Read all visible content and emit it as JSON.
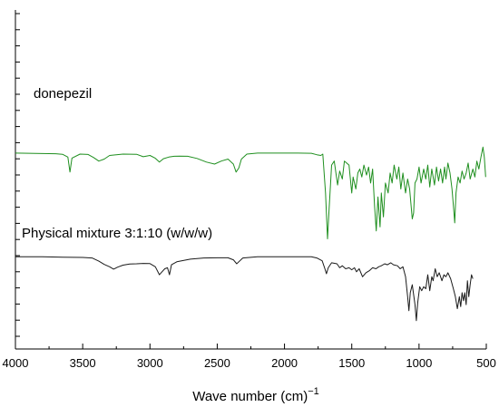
{
  "chart_data": {
    "type": "line",
    "title": "",
    "xlabel": "Wave number (cm)",
    "xlabel_superscript": "−1",
    "ylabel": "",
    "x_reversed": true,
    "xlim": [
      4000,
      500
    ],
    "xticks": [
      4000,
      3500,
      3000,
      2500,
      2000,
      1500,
      1000,
      500
    ],
    "legend": "none",
    "grid": false,
    "series": [
      {
        "name": "donepezil",
        "color": "#1f8f1f",
        "offset": 2.2,
        "points": [
          [
            4000,
            0.0
          ],
          [
            3850,
            0.02
          ],
          [
            3700,
            0.03
          ],
          [
            3650,
            0.06
          ],
          [
            3610,
            0.2
          ],
          [
            3595,
            0.95
          ],
          [
            3580,
            0.25
          ],
          [
            3520,
            0.05
          ],
          [
            3460,
            0.07
          ],
          [
            3420,
            0.22
          ],
          [
            3380,
            0.4
          ],
          [
            3340,
            0.3
          ],
          [
            3300,
            0.12
          ],
          [
            3200,
            0.05
          ],
          [
            3100,
            0.06
          ],
          [
            3050,
            0.18
          ],
          [
            3000,
            0.12
          ],
          [
            2960,
            0.26
          ],
          [
            2930,
            0.45
          ],
          [
            2900,
            0.28
          ],
          [
            2860,
            0.2
          ],
          [
            2820,
            0.16
          ],
          [
            2780,
            0.15
          ],
          [
            2720,
            0.16
          ],
          [
            2650,
            0.27
          ],
          [
            2580,
            0.45
          ],
          [
            2520,
            0.55
          ],
          [
            2470,
            0.4
          ],
          [
            2420,
            0.3
          ],
          [
            2380,
            0.55
          ],
          [
            2360,
            0.95
          ],
          [
            2340,
            0.75
          ],
          [
            2320,
            0.3
          ],
          [
            2280,
            0.05
          ],
          [
            2200,
            0.0
          ],
          [
            2100,
            0.0
          ],
          [
            2000,
            0.0
          ],
          [
            1900,
            0.0
          ],
          [
            1800,
            0.01
          ],
          [
            1760,
            0.08
          ],
          [
            1730,
            0.12
          ],
          [
            1715,
            0.05
          ],
          [
            1695,
            2.0
          ],
          [
            1680,
            4.3
          ],
          [
            1670,
            3.0
          ],
          [
            1650,
            0.6
          ],
          [
            1630,
            0.4
          ],
          [
            1605,
            1.6
          ],
          [
            1590,
            0.9
          ],
          [
            1570,
            1.3
          ],
          [
            1555,
            0.4
          ],
          [
            1520,
            0.6
          ],
          [
            1500,
            2.0
          ],
          [
            1490,
            1.2
          ],
          [
            1470,
            1.8
          ],
          [
            1455,
            1.0
          ],
          [
            1440,
            0.8
          ],
          [
            1425,
            1.2
          ],
          [
            1410,
            0.6
          ],
          [
            1390,
            1.1
          ],
          [
            1375,
            0.7
          ],
          [
            1360,
            1.5
          ],
          [
            1345,
            0.8
          ],
          [
            1330,
            2.7
          ],
          [
            1318,
            3.9
          ],
          [
            1305,
            2.2
          ],
          [
            1290,
            3.7
          ],
          [
            1280,
            2.0
          ],
          [
            1265,
            3.2
          ],
          [
            1250,
            1.5
          ],
          [
            1230,
            2.0
          ],
          [
            1215,
            1.0
          ],
          [
            1200,
            1.5
          ],
          [
            1185,
            0.6
          ],
          [
            1165,
            1.3
          ],
          [
            1150,
            0.7
          ],
          [
            1135,
            1.8
          ],
          [
            1120,
            1.0
          ],
          [
            1100,
            2.0
          ],
          [
            1085,
            1.3
          ],
          [
            1070,
            1.8
          ],
          [
            1050,
            3.3
          ],
          [
            1040,
            3.0
          ],
          [
            1030,
            1.5
          ],
          [
            1015,
            1.3
          ],
          [
            1000,
            0.7
          ],
          [
            985,
            1.5
          ],
          [
            965,
            0.8
          ],
          [
            950,
            1.3
          ],
          [
            935,
            0.6
          ],
          [
            920,
            1.7
          ],
          [
            905,
            0.8
          ],
          [
            885,
            1.6
          ],
          [
            870,
            0.7
          ],
          [
            855,
            1.4
          ],
          [
            840,
            0.8
          ],
          [
            825,
            1.5
          ],
          [
            810,
            0.7
          ],
          [
            800,
            1.3
          ],
          [
            785,
            0.5
          ],
          [
            770,
            1.0
          ],
          [
            755,
            1.8
          ],
          [
            740,
            3.0
          ],
          [
            735,
            3.5
          ],
          [
            725,
            2.0
          ],
          [
            710,
            1.2
          ],
          [
            695,
            1.5
          ],
          [
            680,
            0.9
          ],
          [
            665,
            1.3
          ],
          [
            650,
            1.0
          ],
          [
            635,
            0.5
          ],
          [
            620,
            1.3
          ],
          [
            600,
            0.8
          ],
          [
            585,
            1.2
          ],
          [
            570,
            0.4
          ],
          [
            555,
            0.8
          ],
          [
            540,
            0.2
          ],
          [
            525,
            -0.3
          ],
          [
            515,
            0.2
          ],
          [
            505,
            1.2
          ]
        ]
      },
      {
        "name": "Physical mixture 3:1:10 (w/w/w)",
        "color": "#1a1a1a",
        "offset": 7.4,
        "points": [
          [
            4000,
            0.0
          ],
          [
            3800,
            0.0
          ],
          [
            3650,
            0.02
          ],
          [
            3500,
            0.03
          ],
          [
            3430,
            0.06
          ],
          [
            3380,
            0.22
          ],
          [
            3340,
            0.38
          ],
          [
            3300,
            0.5
          ],
          [
            3270,
            0.62
          ],
          [
            3240,
            0.52
          ],
          [
            3200,
            0.42
          ],
          [
            3150,
            0.36
          ],
          [
            3100,
            0.35
          ],
          [
            3050,
            0.33
          ],
          [
            3000,
            0.34
          ],
          [
            2960,
            0.5
          ],
          [
            2930,
            0.9
          ],
          [
            2910,
            0.75
          ],
          [
            2890,
            0.6
          ],
          [
            2870,
            0.55
          ],
          [
            2855,
            0.9
          ],
          [
            2840,
            0.4
          ],
          [
            2800,
            0.25
          ],
          [
            2700,
            0.12
          ],
          [
            2600,
            0.06
          ],
          [
            2500,
            0.05
          ],
          [
            2420,
            0.05
          ],
          [
            2380,
            0.15
          ],
          [
            2355,
            0.35
          ],
          [
            2340,
            0.25
          ],
          [
            2310,
            0.06
          ],
          [
            2200,
            0.0
          ],
          [
            2100,
            0.0
          ],
          [
            2000,
            0.0
          ],
          [
            1900,
            0.0
          ],
          [
            1800,
            0.0
          ],
          [
            1760,
            0.06
          ],
          [
            1720,
            0.2
          ],
          [
            1700,
            0.6
          ],
          [
            1688,
            0.85
          ],
          [
            1675,
            0.55
          ],
          [
            1650,
            0.3
          ],
          [
            1610,
            0.35
          ],
          [
            1590,
            0.55
          ],
          [
            1570,
            0.45
          ],
          [
            1545,
            0.6
          ],
          [
            1520,
            0.55
          ],
          [
            1500,
            0.65
          ],
          [
            1480,
            0.55
          ],
          [
            1465,
            0.75
          ],
          [
            1445,
            0.6
          ],
          [
            1420,
            1.0
          ],
          [
            1395,
            0.8
          ],
          [
            1370,
            0.7
          ],
          [
            1345,
            0.55
          ],
          [
            1320,
            0.6
          ],
          [
            1300,
            0.5
          ],
          [
            1280,
            0.45
          ],
          [
            1255,
            0.35
          ],
          [
            1235,
            0.4
          ],
          [
            1210,
            0.3
          ],
          [
            1190,
            0.4
          ],
          [
            1160,
            0.45
          ],
          [
            1140,
            0.6
          ],
          [
            1120,
            0.5
          ],
          [
            1100,
            1.0
          ],
          [
            1085,
            2.0
          ],
          [
            1075,
            2.7
          ],
          [
            1065,
            1.8
          ],
          [
            1050,
            1.4
          ],
          [
            1040,
            1.9
          ],
          [
            1030,
            2.4
          ],
          [
            1020,
            3.2
          ],
          [
            1010,
            2.3
          ],
          [
            995,
            1.5
          ],
          [
            980,
            1.7
          ],
          [
            965,
            1.5
          ],
          [
            950,
            1.6
          ],
          [
            935,
            0.9
          ],
          [
            920,
            1.7
          ],
          [
            905,
            1.0
          ],
          [
            895,
            1.2
          ],
          [
            880,
            0.6
          ],
          [
            865,
            1.0
          ],
          [
            850,
            0.8
          ],
          [
            830,
            1.2
          ],
          [
            815,
            0.9
          ],
          [
            800,
            1.0
          ],
          [
            785,
            0.8
          ],
          [
            765,
            1.1
          ],
          [
            745,
            1.6
          ],
          [
            730,
            2.0
          ],
          [
            715,
            2.6
          ],
          [
            700,
            2.0
          ],
          [
            690,
            2.5
          ],
          [
            680,
            1.8
          ],
          [
            670,
            2.2
          ],
          [
            660,
            1.8
          ],
          [
            650,
            2.4
          ],
          [
            640,
            1.2
          ],
          [
            630,
            2.0
          ],
          [
            620,
            1.4
          ],
          [
            610,
            0.9
          ],
          [
            600,
            1.1
          ]
        ]
      }
    ]
  }
}
